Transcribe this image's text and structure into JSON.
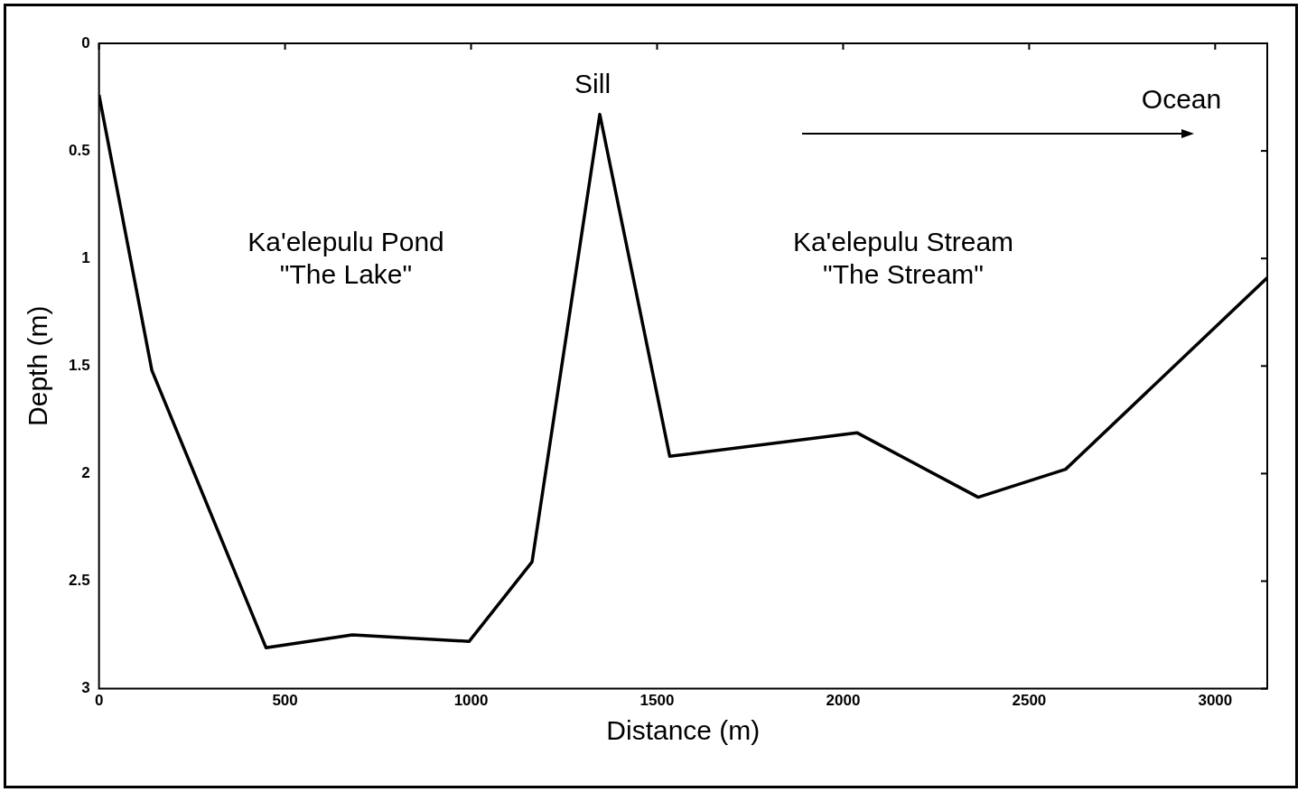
{
  "chart_data": {
    "type": "line",
    "xlabel": "Distance (m)",
    "ylabel": "Depth (m)",
    "x": [
      0,
      142,
      449,
      681,
      995,
      1164,
      1346,
      1534,
      2037,
      2363,
      2598,
      3140
    ],
    "series": [
      {
        "color": "#000000",
        "values": [
          0.24,
          1.52,
          2.81,
          2.75,
          2.78,
          2.41,
          0.33,
          1.92,
          1.81,
          2.11,
          1.98,
          1.09
        ]
      }
    ],
    "xlim": [
      0,
      3140
    ],
    "xticks": [
      0,
      500,
      1000,
      1500,
      2000,
      2500,
      3000
    ],
    "ylim": [
      3,
      0
    ],
    "yticks": [
      0,
      0.5,
      1,
      1.5,
      2,
      2.5,
      3
    ],
    "grid": false,
    "legend": false,
    "marker": "none",
    "line_style": "solid",
    "annotations": [
      {
        "text": "Sill",
        "x": 1346,
        "y": 0.33
      },
      "Ka'elepulu Pond\n\"The Lake\"",
      "Ka'elepulu Stream\n\"The Stream\"",
      "Ocean"
    ]
  }
}
